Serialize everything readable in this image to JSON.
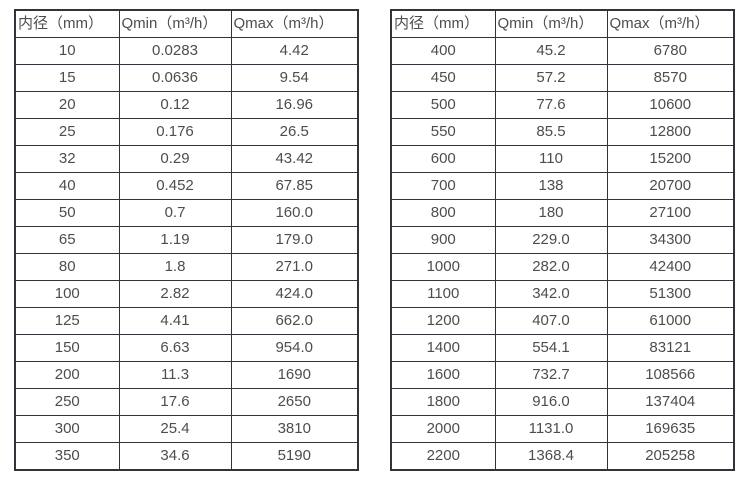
{
  "page": {
    "background": "#ffffff",
    "text_color": "#4d4d4d",
    "border_color": "#32323a"
  },
  "tables": [
    {
      "id": "flow-table-small-diameters",
      "headers": [
        "内径（mm）",
        "Qmin（m³/h）",
        "Qmax（m³/h）"
      ],
      "rows": [
        [
          "10",
          "0.0283",
          "4.42"
        ],
        [
          "15",
          "0.0636",
          "9.54"
        ],
        [
          "20",
          "0.12",
          "16.96"
        ],
        [
          "25",
          "0.176",
          "26.5"
        ],
        [
          "32",
          "0.29",
          "43.42"
        ],
        [
          "40",
          "0.452",
          "67.85"
        ],
        [
          "50",
          "0.7",
          "160.0"
        ],
        [
          "65",
          "1.19",
          "179.0"
        ],
        [
          "80",
          "1.8",
          "271.0"
        ],
        [
          "100",
          "2.82",
          "424.0"
        ],
        [
          "125",
          "4.41",
          "662.0"
        ],
        [
          "150",
          "6.63",
          "954.0"
        ],
        [
          "200",
          "11.3",
          "1690"
        ],
        [
          "250",
          "17.6",
          "2650"
        ],
        [
          "300",
          "25.4",
          "3810"
        ],
        [
          "350",
          "34.6",
          "5190"
        ]
      ]
    },
    {
      "id": "flow-table-large-diameters",
      "headers": [
        "内径（mm）",
        "Qmin（m³/h）",
        "Qmax（m³/h）"
      ],
      "rows": [
        [
          "400",
          "45.2",
          "6780"
        ],
        [
          "450",
          "57.2",
          "8570"
        ],
        [
          "500",
          "77.6",
          "10600"
        ],
        [
          "550",
          "85.5",
          "12800"
        ],
        [
          "600",
          "110",
          "15200"
        ],
        [
          "700",
          "138",
          "20700"
        ],
        [
          "800",
          "180",
          "27100"
        ],
        [
          "900",
          "229.0",
          "34300"
        ],
        [
          "1000",
          "282.0",
          "42400"
        ],
        [
          "1100",
          "342.0",
          "51300"
        ],
        [
          "1200",
          "407.0",
          "61000"
        ],
        [
          "1400",
          "554.1",
          "83121"
        ],
        [
          "1600",
          "732.7",
          "108566"
        ],
        [
          "1800",
          "916.0",
          "137404"
        ],
        [
          "2000",
          "1131.0",
          "169635"
        ],
        [
          "2200",
          "1368.4",
          "205258"
        ]
      ]
    }
  ]
}
